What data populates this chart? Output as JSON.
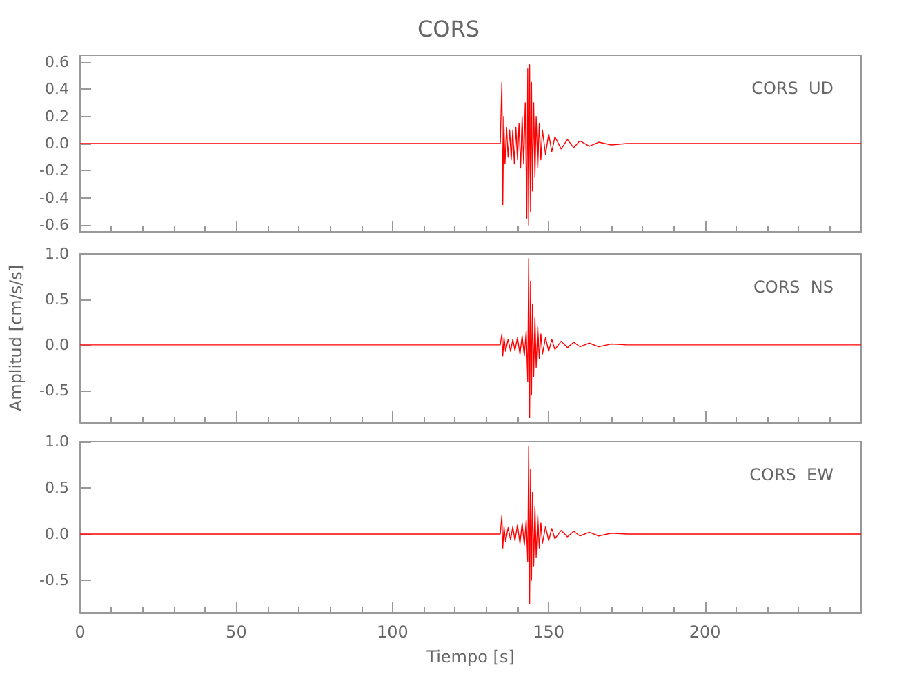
{
  "chart_data": [
    {
      "type": "line",
      "title": "CORS",
      "annotations": [
        "CORS  UD"
      ],
      "tick_labels": "y",
      "xlim": [
        0,
        250
      ],
      "xticks": [
        0,
        50,
        100,
        150,
        200
      ],
      "ylim": [
        -0.65,
        0.65
      ],
      "yticks": [
        {
          "value": -0.6,
          "label": "-0.6"
        },
        {
          "value": -0.4,
          "label": "-0.4"
        },
        {
          "value": -0.2,
          "label": "-0.2"
        },
        {
          "value": 0,
          "label": "0.0"
        },
        {
          "value": 0.2,
          "label": "0.2"
        },
        {
          "value": 0.4,
          "label": "0.4"
        },
        {
          "value": 0.6,
          "label": "0.6"
        }
      ],
      "series": [
        {
          "color": "#ff0000",
          "x": [
            0,
            134.5,
            135,
            135.3,
            135.6,
            136,
            136.5,
            137,
            137.5,
            138,
            138.5,
            139,
            139.5,
            140,
            140.5,
            141,
            141.5,
            142,
            142.5,
            143,
            143.3,
            143.6,
            143.9,
            144.2,
            144.5,
            144.8,
            145.2,
            145.6,
            146,
            146.5,
            147,
            147.5,
            148,
            149,
            150,
            151,
            152,
            154,
            156,
            158,
            160,
            163,
            166,
            170,
            175,
            250
          ],
          "values": [
            0,
            0,
            0.45,
            -0.45,
            0.2,
            -0.15,
            0.12,
            -0.1,
            0.1,
            -0.12,
            0.1,
            -0.15,
            0.12,
            -0.12,
            0.15,
            -0.18,
            0.2,
            -0.15,
            0.3,
            -0.55,
            0.55,
            -0.6,
            0.58,
            -0.5,
            0.45,
            -0.35,
            0.3,
            -0.25,
            0.2,
            -0.18,
            0.15,
            -0.12,
            0.1,
            -0.08,
            0.07,
            -0.06,
            0.05,
            -0.04,
            0.03,
            -0.03,
            0.02,
            -0.02,
            0.01,
            -0.01,
            0,
            0
          ]
        }
      ]
    },
    {
      "type": "line",
      "ylabel": "Amplitud [cm/s/s]",
      "annotations": [
        "CORS  NS"
      ],
      "tick_labels": "y",
      "xlim": [
        0,
        250
      ],
      "xticks": [
        0,
        50,
        100,
        150,
        200
      ],
      "ylim": [
        -0.85,
        1.0
      ],
      "yticks": [
        {
          "value": -0.5,
          "label": "-0.5"
        },
        {
          "value": 0,
          "label": "0.0"
        },
        {
          "value": 0.5,
          "label": "0.5"
        },
        {
          "value": 1,
          "label": "1.0"
        }
      ],
      "series": [
        {
          "color": "#ff0000",
          "x": [
            0,
            134.5,
            135,
            135.3,
            135.7,
            136.2,
            137,
            137.8,
            138.5,
            139.2,
            140,
            140.8,
            141.5,
            142.2,
            142.8,
            143.3,
            143.6,
            143.9,
            144.2,
            144.5,
            144.8,
            145.2,
            145.6,
            146,
            146.5,
            147,
            147.5,
            148,
            149,
            150,
            151,
            152,
            154,
            156,
            158,
            160,
            163,
            166,
            170,
            175,
            250
          ],
          "values": [
            0,
            0,
            0.12,
            -0.12,
            0.08,
            -0.07,
            0.06,
            -0.07,
            0.06,
            -0.06,
            0.08,
            -0.1,
            0.1,
            -0.12,
            0.15,
            -0.4,
            0.95,
            -0.8,
            0.7,
            -0.55,
            0.45,
            -0.35,
            0.3,
            -0.25,
            0.2,
            -0.15,
            0.12,
            -0.1,
            0.08,
            -0.07,
            0.06,
            -0.05,
            0.04,
            -0.03,
            0.03,
            -0.02,
            0.02,
            -0.02,
            0.01,
            0,
            0
          ]
        }
      ]
    },
    {
      "type": "line",
      "xlabel": "Tiempo [s]",
      "annotations": [
        "CORS  EW"
      ],
      "xlim": [
        0,
        250
      ],
      "xticks": [
        0,
        50,
        100,
        150,
        200
      ],
      "ylim": [
        -0.85,
        1.0
      ],
      "yticks": [
        {
          "value": -0.5,
          "label": "-0.5"
        },
        {
          "value": 0,
          "label": "0.0"
        },
        {
          "value": 0.5,
          "label": "0.5"
        },
        {
          "value": 1,
          "label": "1.0"
        }
      ],
      "series": [
        {
          "color": "#ff0000",
          "x": [
            0,
            134.5,
            135,
            135.3,
            135.7,
            136.2,
            137,
            137.8,
            138.5,
            139.2,
            140,
            140.8,
            141.5,
            142.2,
            142.8,
            143.3,
            143.6,
            143.9,
            144.2,
            144.5,
            144.8,
            145.2,
            145.6,
            146,
            146.5,
            147,
            147.5,
            148,
            149,
            150,
            151,
            152,
            154,
            156,
            158,
            160,
            163,
            166,
            170,
            175,
            250
          ],
          "values": [
            0,
            0,
            0.2,
            -0.15,
            0.08,
            -0.08,
            0.07,
            -0.06,
            0.08,
            -0.07,
            0.1,
            -0.1,
            0.12,
            -0.12,
            0.15,
            -0.3,
            0.95,
            -0.75,
            0.7,
            -0.5,
            0.45,
            -0.35,
            0.3,
            -0.25,
            0.2,
            -0.15,
            0.12,
            -0.1,
            0.08,
            -0.07,
            0.06,
            -0.05,
            0.04,
            -0.03,
            0.03,
            -0.02,
            0.02,
            -0.02,
            0.01,
            0,
            0
          ]
        }
      ]
    }
  ]
}
